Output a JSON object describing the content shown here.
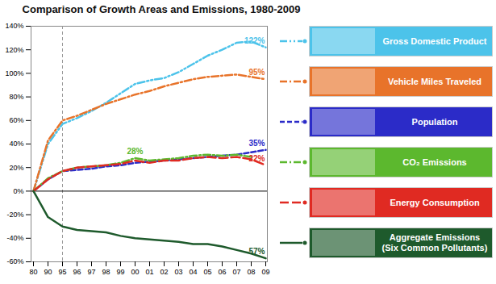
{
  "chart_data": {
    "type": "line",
    "title": "Comparison of Growth Areas and Emissions, 1980-2009",
    "categories": [
      "80",
      "90",
      "95",
      "96",
      "97",
      "98",
      "99",
      "00",
      "01",
      "02",
      "03",
      "04",
      "05",
      "06",
      "07",
      "08",
      "09"
    ],
    "reference_x": [
      "95"
    ],
    "ylim": [
      -60,
      140
    ],
    "yticks": [
      {
        "value": -60,
        "label": "-60%"
      },
      {
        "value": -40,
        "label": "-40%"
      },
      {
        "value": -20,
        "label": "-20%"
      },
      {
        "value": 0,
        "label": "0%"
      },
      {
        "value": 20,
        "label": "20%"
      },
      {
        "value": 40,
        "label": "40%"
      },
      {
        "value": 60,
        "label": "60%"
      },
      {
        "value": 80,
        "label": "80%"
      },
      {
        "value": 100,
        "label": "100%"
      },
      {
        "value": 120,
        "label": "120%"
      },
      {
        "value": 140,
        "label": "140%"
      }
    ],
    "grid": false,
    "legend": "right",
    "series": [
      {
        "name": "Gross Domestic Product",
        "color": "#4cc3ea",
        "line_style": "dash-dot-dot",
        "values": [
          0,
          40,
          57,
          62,
          68,
          75,
          83,
          91,
          94,
          96,
          101,
          108,
          115,
          120,
          126,
          127,
          122
        ],
        "value_labels": [
          null,
          null,
          null,
          null,
          null,
          null,
          null,
          null,
          null,
          null,
          null,
          null,
          null,
          null,
          null,
          null,
          "122%"
        ]
      },
      {
        "name": "Vehicle Miles Traveled",
        "color": "#e8732a",
        "line_style": "dash-dot",
        "values": [
          0,
          43,
          60,
          64,
          69,
          74,
          78,
          82,
          85,
          89,
          92,
          95,
          97,
          98,
          99,
          97,
          95
        ],
        "value_labels": [
          null,
          null,
          null,
          null,
          null,
          null,
          null,
          null,
          null,
          null,
          null,
          null,
          null,
          null,
          null,
          null,
          "95%"
        ]
      },
      {
        "name": "Population",
        "color": "#2b2bc8",
        "line_style": "dashed",
        "values": [
          0,
          10,
          17,
          18,
          19,
          21,
          22,
          24,
          25,
          26,
          27,
          28,
          29,
          30,
          31,
          33,
          35
        ],
        "value_labels": [
          null,
          null,
          null,
          null,
          null,
          null,
          null,
          null,
          null,
          null,
          null,
          null,
          null,
          null,
          null,
          null,
          "35%"
        ]
      },
      {
        "name": "CO₂ Emissions",
        "color": "#5cb82e",
        "line_style": "dash-dot",
        "values": [
          0,
          11,
          17,
          20,
          21,
          22,
          24,
          28,
          26,
          27,
          28,
          30,
          31,
          30,
          31,
          29,
          null
        ],
        "value_labels": [
          null,
          null,
          null,
          null,
          null,
          null,
          null,
          "28%",
          null,
          null,
          null,
          null,
          null,
          null,
          null,
          null,
          null
        ]
      },
      {
        "name": "Energy Consumption",
        "color": "#e02a22",
        "line_style": "long-dash",
        "values": [
          0,
          10,
          17,
          20,
          21,
          22,
          23,
          26,
          24,
          26,
          26,
          28,
          29,
          28,
          29,
          27,
          22
        ],
        "value_labels": [
          null,
          null,
          null,
          null,
          null,
          null,
          null,
          null,
          null,
          null,
          null,
          null,
          null,
          null,
          null,
          null,
          "22%"
        ]
      },
      {
        "name": "Aggregate Emissions (Six Common Pollutants)",
        "color": "#1e5a2c",
        "line_style": "solid",
        "values": [
          0,
          -22,
          -30,
          -33,
          -34,
          -35,
          -38,
          -40,
          -41,
          -42,
          -43,
          -45,
          -45,
          -47,
          -50,
          -53,
          -57
        ],
        "value_labels": [
          null,
          null,
          null,
          null,
          null,
          null,
          null,
          null,
          null,
          null,
          null,
          null,
          null,
          null,
          null,
          null,
          "-57%"
        ]
      }
    ]
  }
}
